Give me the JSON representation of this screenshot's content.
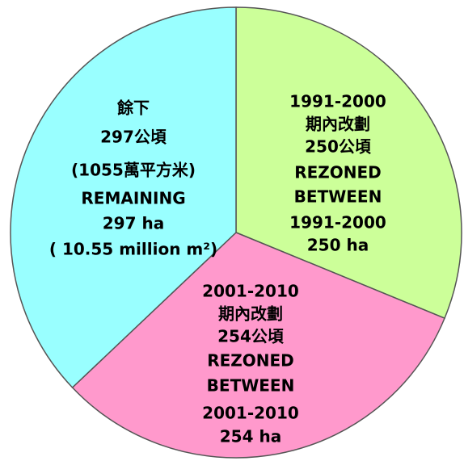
{
  "chart_data": {
    "type": "pie",
    "values": [
      250,
      254,
      297
    ],
    "colors": [
      "#ccff99",
      "#ff99cc",
      "#99ffff"
    ],
    "labels": [
      [
        "1991-2000",
        "期內改劃",
        "250公頃",
        "REZONED",
        "BETWEEN",
        "1991-2000",
        "250 ha"
      ],
      [
        "2001-2010",
        "期內改劃",
        "254公頃",
        "REZONED",
        "BETWEEN",
        "2001-2010",
        "254 ha"
      ],
      [
        "餘下",
        "297公頃",
        "(1055萬平方米)",
        "REMAINING",
        "297 ha",
        "( 10.55 million m²)"
      ]
    ]
  }
}
